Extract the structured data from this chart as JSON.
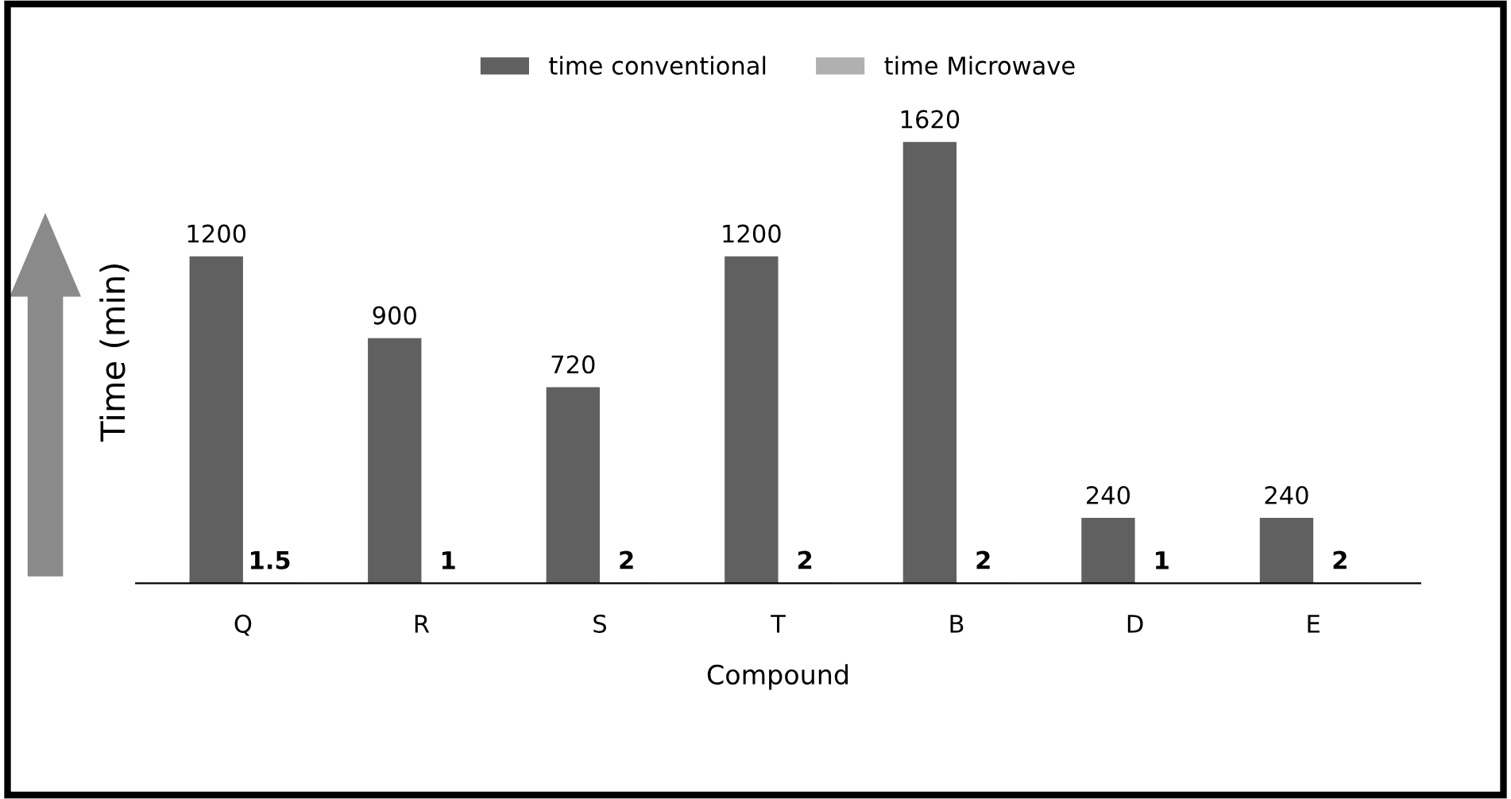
{
  "chart_data": {
    "type": "bar",
    "xlabel": "Compound",
    "ylabel": "Time (min)",
    "categories": [
      "Q",
      "R",
      "S",
      "T",
      "B",
      "D",
      "E"
    ],
    "series": [
      {
        "name": "time conventional",
        "color": "#606060",
        "values": [
          1200,
          900,
          720,
          1200,
          1620,
          240,
          240
        ]
      },
      {
        "name": "time Microwave",
        "color": "#b0b0b0",
        "values": [
          1.5,
          1,
          2,
          2,
          2,
          1,
          2
        ]
      }
    ],
    "data_labels": true,
    "legend": "top",
    "tick_labels": "x",
    "grid": false
  }
}
